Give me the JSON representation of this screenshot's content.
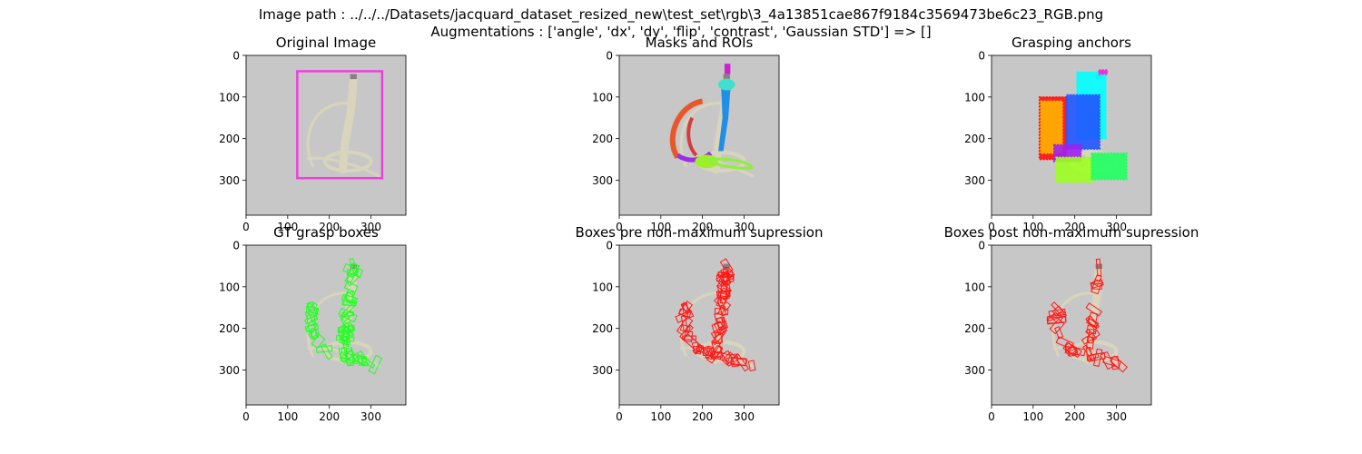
{
  "figure": {
    "title_line1": "Image path : ../../../Datasets/jacquard_dataset_resized_new\\test_set\\rgb\\3_4a13851cae867f9184c3569473be6c23_RGB.png",
    "title_line2": "Augmentations : ['angle', 'dx', 'dy', 'flip', 'contrast', 'Gaussian STD'] => []"
  },
  "colors": {
    "background": "#c7c7c7",
    "object": "#d9d4bc",
    "roi_box": "#ef3fe0",
    "gt_box": "#22ff22",
    "pred_box": "#ff1a1a",
    "axis": "#000000"
  },
  "chart_data": [
    {
      "type": "heatmap",
      "title": "Original Image",
      "xticks": [
        0,
        100,
        200,
        300
      ],
      "yticks": [
        0,
        100,
        200,
        300
      ],
      "xlim": [
        0,
        384
      ],
      "ylim": [
        384,
        0
      ],
      "overlays": {
        "roi_box": {
          "x0": 123,
          "y0": 38,
          "x1": 327,
          "y1": 295
        }
      }
    },
    {
      "type": "heatmap",
      "title": "Masks and ROIs",
      "xticks": [
        0,
        100,
        200,
        300
      ],
      "yticks": [
        0,
        100,
        200,
        300
      ],
      "xlim": [
        0,
        384
      ],
      "ylim": [
        384,
        0
      ]
    },
    {
      "type": "heatmap",
      "title": "Grasping anchors",
      "xticks": [
        0,
        100,
        200,
        300
      ],
      "yticks": [
        0,
        100,
        200,
        300
      ],
      "xlim": [
        0,
        384
      ],
      "ylim": [
        384,
        0
      ]
    },
    {
      "type": "heatmap",
      "title": "GT grasp boxes",
      "xticks": [
        0,
        100,
        200,
        300
      ],
      "yticks": [
        0,
        100,
        200,
        300
      ],
      "xlim": [
        0,
        384
      ],
      "ylim": [
        384,
        0
      ]
    },
    {
      "type": "heatmap",
      "title": "Boxes pre non-maximum supression",
      "xticks": [
        0,
        100,
        200,
        300
      ],
      "yticks": [
        0,
        100,
        200,
        300
      ],
      "xlim": [
        0,
        384
      ],
      "ylim": [
        384,
        0
      ]
    },
    {
      "type": "heatmap",
      "title": "Boxes post non-maximum supression",
      "xticks": [
        0,
        100,
        200,
        300
      ],
      "yticks": [
        0,
        100,
        200,
        300
      ],
      "xlim": [
        0,
        384
      ],
      "ylim": [
        384,
        0
      ]
    }
  ]
}
